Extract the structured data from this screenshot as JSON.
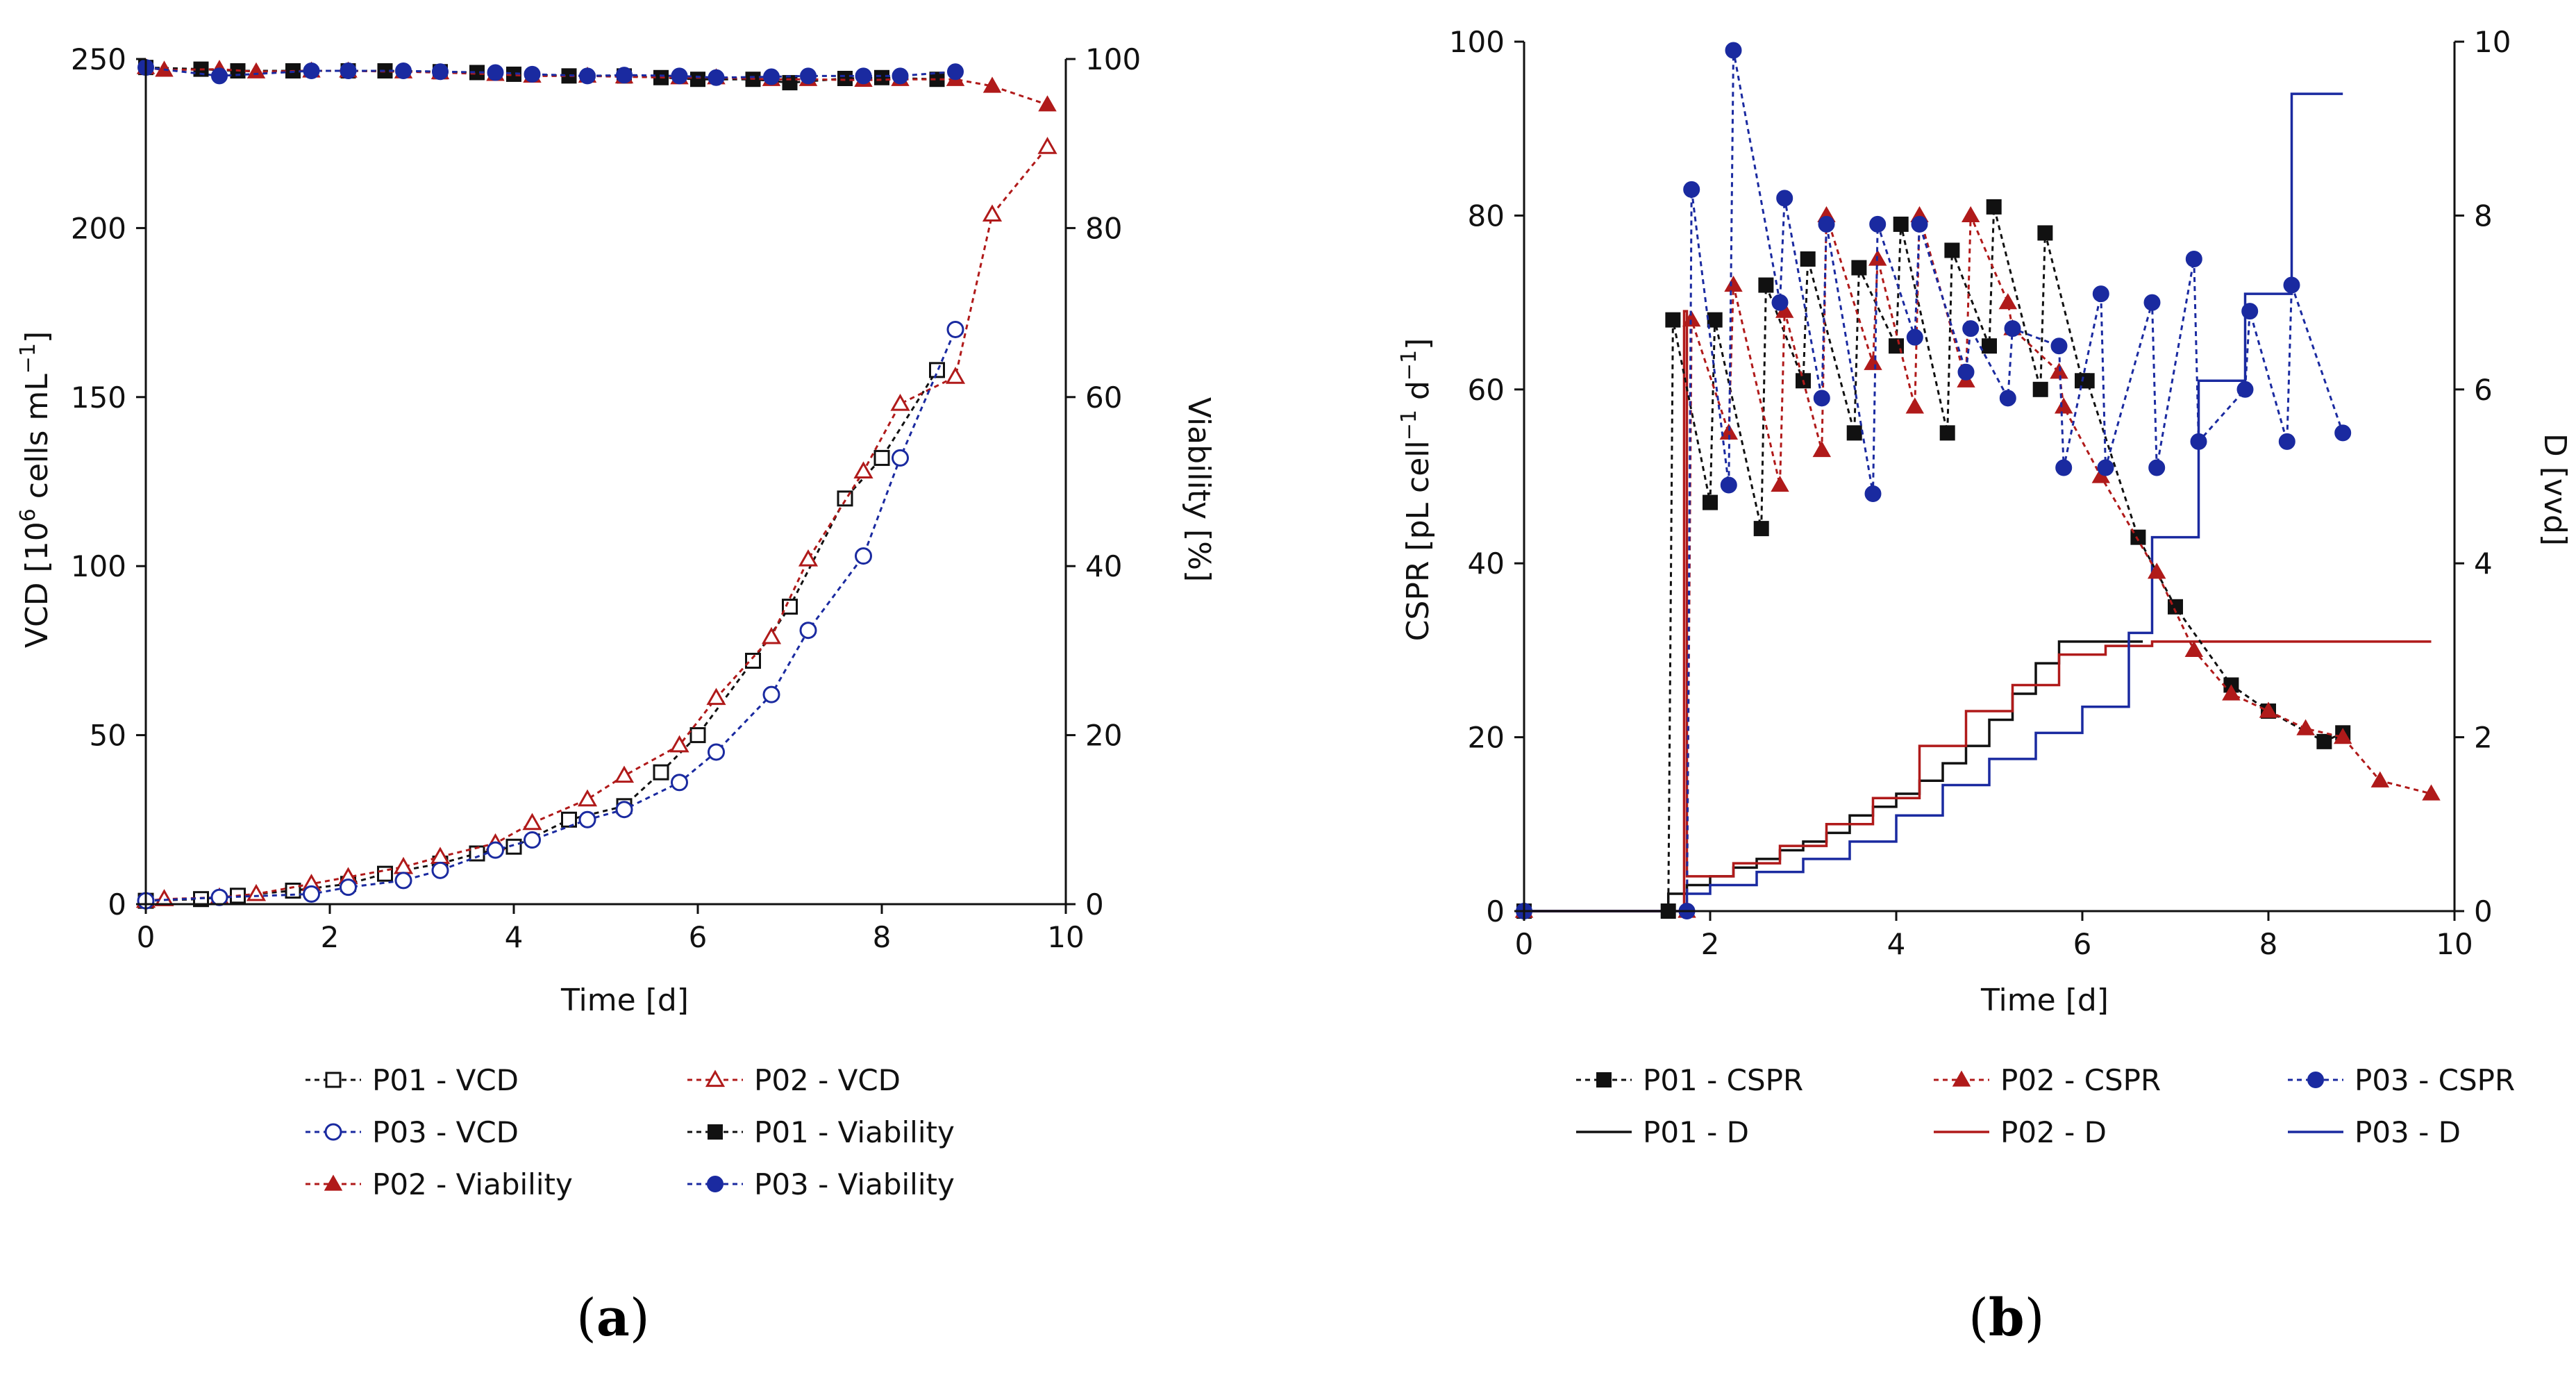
{
  "colors": {
    "black": "#111111",
    "red": "#b01a1a",
    "blue": "#1a2aa0"
  },
  "chart_data": [
    {
      "type": "line",
      "panel_label": "a",
      "xlabel": "Time [d]",
      "ylabel_left": "VCD [10^6 cells mL^-1]",
      "ylabel_left_parts": {
        "pre": "VCD [10",
        "sup1": "6",
        "mid": " cells mL",
        "sup2": "−1",
        "post": "]"
      },
      "ylabel_right": "Viability [%]",
      "xlim": [
        0,
        10
      ],
      "ylim_left": [
        0,
        250
      ],
      "ylim_right": [
        0,
        100
      ],
      "xticks": [
        "0",
        "2",
        "4",
        "6",
        "8",
        "10"
      ],
      "yticks_left": [
        "0",
        "50",
        "100",
        "150",
        "200",
        "250"
      ],
      "yticks_right": [
        "0",
        "20",
        "40",
        "60",
        "80",
        "100"
      ],
      "grid": false,
      "legend_position": "bottom",
      "series": [
        {
          "name": "P01 - VCD",
          "axis": "left",
          "color": "black",
          "marker": "square",
          "filled": false,
          "x": [
            0,
            0.6,
            1.0,
            1.6,
            2.2,
            2.6,
            3.2,
            3.6,
            4.0,
            4.6,
            5.2,
            5.6,
            6.0,
            6.6,
            7.0,
            7.6,
            8.0,
            8.6
          ],
          "y": [
            1,
            1.5,
            2.5,
            4,
            6,
            9,
            12,
            15,
            17,
            25,
            29,
            39,
            50,
            72,
            88,
            120,
            132,
            158
          ]
        },
        {
          "name": "P02 - VCD",
          "axis": "left",
          "color": "red",
          "marker": "triangle",
          "filled": false,
          "x": [
            0,
            0.2,
            0.8,
            1.2,
            1.8,
            2.2,
            2.8,
            3.2,
            3.8,
            4.2,
            4.8,
            5.2,
            5.8,
            6.2,
            6.8,
            7.2,
            7.8,
            8.2,
            8.8,
            9.2,
            9.8
          ],
          "y": [
            1,
            1.5,
            2,
            3,
            6,
            8,
            11,
            14,
            18,
            24,
            31,
            38,
            47,
            61,
            79,
            102,
            128,
            148,
            156,
            204,
            224
          ]
        },
        {
          "name": "P03 - VCD",
          "axis": "left",
          "color": "blue",
          "marker": "circle",
          "filled": false,
          "x": [
            0,
            0.8,
            1.8,
            2.2,
            2.8,
            3.2,
            3.8,
            4.2,
            4.8,
            5.2,
            5.8,
            6.2,
            6.8,
            7.2,
            7.8,
            8.2,
            8.8
          ],
          "y": [
            1,
            2,
            3,
            5,
            7,
            10,
            16,
            19,
            25,
            28,
            36,
            45,
            62,
            81,
            103,
            132,
            170
          ]
        },
        {
          "name": "P01 - Viability",
          "axis": "right",
          "color": "black",
          "marker": "square",
          "filled": true,
          "x": [
            0,
            0.6,
            1.0,
            1.6,
            2.2,
            2.6,
            3.2,
            3.6,
            4.0,
            4.6,
            5.2,
            5.6,
            6.0,
            6.6,
            7.0,
            7.6,
            8.0,
            8.6
          ],
          "y": [
            99,
            98.8,
            98.6,
            98.6,
            98.6,
            98.6,
            98.5,
            98.4,
            98.2,
            98.0,
            98.0,
            97.8,
            97.6,
            97.6,
            97.2,
            97.7,
            97.8,
            97.6
          ]
        },
        {
          "name": "P02 - Viability",
          "axis": "right",
          "color": "red",
          "marker": "triangle",
          "filled": true,
          "x": [
            0,
            0.2,
            0.8,
            1.2,
            1.8,
            2.2,
            2.8,
            3.2,
            3.8,
            4.2,
            4.8,
            5.2,
            5.8,
            6.2,
            6.8,
            7.2,
            7.8,
            8.2,
            8.8,
            9.2,
            9.8
          ],
          "y": [
            99,
            98.7,
            98.8,
            98.5,
            98.6,
            98.6,
            98.5,
            98.4,
            98.2,
            98.0,
            98.0,
            97.9,
            97.8,
            97.8,
            97.6,
            97.6,
            97.5,
            97.6,
            97.6,
            96.8,
            94.6
          ]
        },
        {
          "name": "P03 - Viability",
          "axis": "right",
          "color": "blue",
          "marker": "circle",
          "filled": true,
          "x": [
            0,
            0.8,
            1.8,
            2.2,
            2.8,
            3.2,
            3.8,
            4.2,
            4.8,
            5.2,
            5.8,
            6.2,
            6.8,
            7.2,
            7.8,
            8.2,
            8.8
          ],
          "y": [
            99,
            98,
            98.6,
            98.6,
            98.6,
            98.5,
            98.4,
            98.2,
            98.0,
            98.1,
            98.0,
            97.8,
            97.9,
            98.0,
            98.0,
            98.0,
            98.5
          ]
        }
      ],
      "legend": [
        [
          "P01 - VCD",
          "P02 - VCD"
        ],
        [
          "P03 - VCD",
          "P01 - Viability"
        ],
        [
          "P02 - Viability",
          "P03 - Viability"
        ]
      ]
    },
    {
      "type": "line",
      "panel_label": "b",
      "xlabel": "Time [d]",
      "ylabel_left": "CSPR [pL cell^-1 d^-1]",
      "ylabel_left_parts": {
        "pre": "CSPR [pL cell",
        "sup1": "−1",
        "mid": " d",
        "sup2": "−1",
        "post": "]"
      },
      "ylabel_right": "D [vvd]",
      "xlim": [
        0,
        10
      ],
      "ylim_left": [
        0,
        100
      ],
      "ylim_right": [
        0,
        10
      ],
      "xticks": [
        "0",
        "2",
        "4",
        "6",
        "8",
        "10"
      ],
      "yticks_left": [
        "0",
        "20",
        "40",
        "60",
        "80",
        "100"
      ],
      "yticks_right": [
        "0",
        "2",
        "4",
        "6",
        "8",
        "10"
      ],
      "grid": false,
      "legend_position": "bottom",
      "series": [
        {
          "name": "P01 - CSPR",
          "axis": "left",
          "color": "black",
          "marker": "square",
          "filled": true,
          "x": [
            0,
            1.55,
            1.6,
            2.0,
            2.05,
            2.55,
            2.6,
            3.0,
            3.05,
            3.55,
            3.6,
            4.0,
            4.05,
            4.55,
            4.6,
            5.0,
            5.05,
            5.55,
            5.6,
            6.0,
            6.05,
            6.6,
            7.0,
            7.6,
            8.0,
            8.6,
            8.8
          ],
          "y": [
            0,
            0,
            68,
            47,
            68,
            44,
            72,
            61,
            75,
            55,
            74,
            65,
            79,
            55,
            76,
            65,
            81,
            60,
            78,
            61,
            61,
            43,
            35,
            26,
            23,
            19.5,
            20.5
          ]
        },
        {
          "name": "P02 - CSPR",
          "axis": "left",
          "color": "red",
          "marker": "triangle",
          "filled": true,
          "x": [
            0,
            1.75,
            1.8,
            2.2,
            2.25,
            2.75,
            2.8,
            3.2,
            3.25,
            3.75,
            3.8,
            4.2,
            4.25,
            4.75,
            4.8,
            5.2,
            5.25,
            5.75,
            5.8,
            6.2,
            6.8,
            7.2,
            7.6,
            8.0,
            8.4,
            8.8,
            9.2,
            9.75
          ],
          "y": [
            0,
            0,
            68,
            55,
            72,
            49,
            69,
            53,
            80,
            63,
            75,
            58,
            80,
            61,
            80,
            70,
            67,
            62,
            58,
            50,
            39,
            30,
            25,
            23,
            21,
            20,
            15,
            13.5
          ]
        },
        {
          "name": "P03 - CSPR",
          "axis": "left",
          "color": "blue",
          "marker": "circle",
          "filled": true,
          "x": [
            0,
            1.75,
            1.8,
            2.2,
            2.25,
            2.75,
            2.8,
            3.2,
            3.25,
            3.75,
            3.8,
            4.2,
            4.25,
            4.75,
            4.8,
            5.2,
            5.25,
            5.75,
            5.8,
            6.2,
            6.25,
            6.75,
            6.8,
            7.2,
            7.25,
            7.75,
            7.8,
            8.2,
            8.25,
            8.8
          ],
          "y": [
            0,
            0,
            83,
            49,
            99,
            70,
            82,
            59,
            79,
            48,
            79,
            66,
            79,
            62,
            67,
            59,
            67,
            65,
            51,
            71,
            51,
            70,
            51,
            75,
            54,
            60,
            69,
            54,
            72,
            55
          ]
        }
      ],
      "step_series": [
        {
          "name": "P01 - D",
          "axis": "right",
          "color": "black",
          "x": [
            0,
            1.55,
            1.55,
            1.75,
            2.0,
            2.25,
            2.5,
            2.75,
            3.0,
            3.25,
            3.5,
            3.75,
            4.0,
            4.25,
            4.5,
            4.75,
            5.0,
            5.25,
            5.5,
            5.75,
            6.0,
            6.25,
            6.5,
            6.65
          ],
          "y": [
            0,
            0,
            0.2,
            0.3,
            0.4,
            0.5,
            0.6,
            0.7,
            0.8,
            0.9,
            1.1,
            1.2,
            1.35,
            1.5,
            1.7,
            1.9,
            2.2,
            2.5,
            2.85,
            3.1,
            3.1,
            3.1,
            3.1,
            3.1
          ]
        },
        {
          "name": "P02 - D",
          "axis": "right",
          "color": "red",
          "x": [
            0,
            1.72,
            1.72,
            1.75,
            2.25,
            2.75,
            3.25,
            3.75,
            4.25,
            4.75,
            5.25,
            5.75,
            6.25,
            6.75,
            9.75
          ],
          "y": [
            0,
            0,
            6.9,
            0.4,
            0.55,
            0.75,
            1.0,
            1.3,
            1.9,
            2.3,
            2.6,
            2.95,
            3.05,
            3.1,
            3.1
          ]
        },
        {
          "name": "P03 - D",
          "axis": "right",
          "color": "blue",
          "x": [
            0,
            1.75,
            1.75,
            2.0,
            2.5,
            3.0,
            3.5,
            4.0,
            4.5,
            5.0,
            5.5,
            6.0,
            6.5,
            6.75,
            7.25,
            7.75,
            8.25,
            8.8
          ],
          "y": [
            0,
            0,
            0.2,
            0.3,
            0.45,
            0.6,
            0.8,
            1.1,
            1.45,
            1.75,
            2.05,
            2.35,
            3.2,
            4.3,
            6.1,
            7.1,
            9.4,
            9.4
          ]
        }
      ],
      "legend": [
        [
          "P01 - CSPR",
          "P02 - CSPR",
          "P03 - CSPR"
        ],
        [
          "P01 - D",
          "P02 - D",
          "P03 - D"
        ]
      ]
    }
  ]
}
